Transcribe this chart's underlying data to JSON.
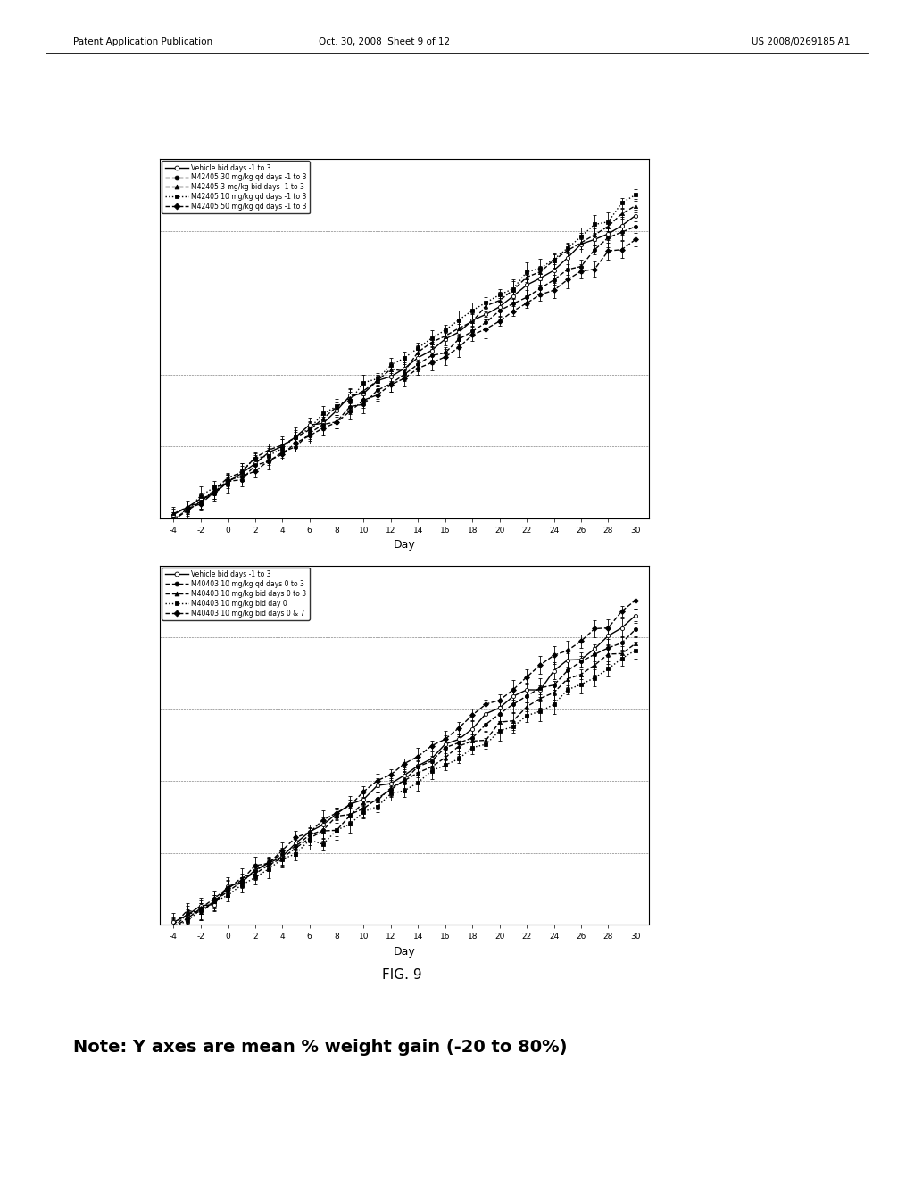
{
  "page_header_left": "Patent Application Publication",
  "page_header_mid": "Oct. 30, 2008  Sheet 9 of 12",
  "page_header_right": "US 2008/0269185 A1",
  "fig_label": "FIG. 9",
  "note_text": "Note: Y axes are mean % weight gain (-20 to 80%)",
  "xlabel": "Day",
  "x_ticks": [
    -4,
    -2,
    0,
    2,
    4,
    6,
    8,
    10,
    12,
    14,
    16,
    18,
    20,
    22,
    24,
    26,
    28,
    30
  ],
  "xlim": [
    -5,
    31
  ],
  "ylim": [
    -20,
    80
  ],
  "y_gridlines": [
    -20,
    0,
    20,
    40,
    60,
    80
  ],
  "plot1_legend": [
    "Vehicle bid days -1 to 3",
    "M42405 30 mg/kg qd days -1 to 3",
    "M42405 3 mg/kg bid days -1 to 3",
    "M42405 10 mg/kg qd days -1 to 3",
    "M42405 50 mg/kg qd days -1 to 3"
  ],
  "plot2_legend": [
    "Vehicle bid days -1 to 3",
    "M40403 10 mg/kg qd days 0 to 3",
    "M40403 10 mg/kg bid days 0 to 3",
    "M40403 10 mg/kg bid day 0",
    "M40403 10 mg/kg bid days 0 & 7"
  ],
  "line_styles": [
    {
      "ls": "-",
      "marker": "o",
      "mfc": "white",
      "lw": 1.0
    },
    {
      "ls": "--",
      "marker": "o",
      "mfc": "black",
      "lw": 1.0
    },
    {
      "ls": "--",
      "marker": "^",
      "mfc": "black",
      "lw": 1.0
    },
    {
      "ls": ":",
      "marker": "s",
      "mfc": "black",
      "lw": 1.0
    },
    {
      "ls": "--",
      "marker": "D",
      "mfc": "black",
      "lw": 1.0
    }
  ],
  "slopes1": [
    2.48,
    2.38,
    2.55,
    2.62,
    2.28
  ],
  "slopes2": [
    2.5,
    2.42,
    2.32,
    2.22,
    2.62
  ],
  "seed1": 10,
  "seed2": 20
}
